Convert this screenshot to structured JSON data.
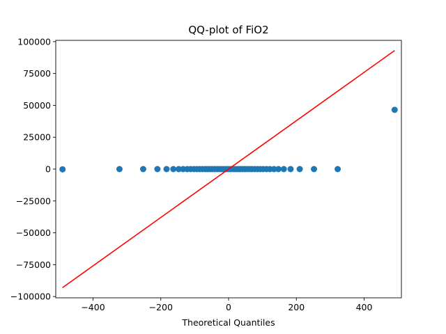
{
  "chart_data": {
    "type": "scatter",
    "title": "QQ-plot of FiO2",
    "xlabel": "Theoretical Quantiles",
    "ylabel": "",
    "xlim": [
      -510,
      510
    ],
    "ylim": [
      -101000,
      101000
    ],
    "grid": false,
    "x_ticks": [
      -400,
      -200,
      0,
      200,
      400
    ],
    "x_tick_labels": [
      "−400",
      "−200",
      "0",
      "200",
      "400"
    ],
    "y_ticks": [
      -100000,
      -75000,
      -50000,
      -25000,
      0,
      25000,
      50000,
      75000,
      100000
    ],
    "y_tick_labels": [
      "−100000",
      "−75000",
      "−50000",
      "−25000",
      "0",
      "25000",
      "50000",
      "75000",
      "100000"
    ],
    "series": [
      {
        "type": "scatter",
        "color": "#1f77b4",
        "points": [
          [
            -490,
            -200
          ],
          [
            -322,
            0
          ],
          [
            -252,
            0
          ],
          [
            -210,
            0
          ],
          [
            -183,
            0
          ],
          [
            -163,
            0
          ],
          [
            -147,
            0
          ],
          [
            -134,
            0
          ],
          [
            -122,
            0
          ],
          [
            -112,
            0
          ],
          [
            -102,
            0
          ],
          [
            -93,
            0
          ],
          [
            -85,
            0
          ],
          [
            -77,
            0
          ],
          [
            -69,
            0
          ],
          [
            -62,
            0
          ],
          [
            -55,
            0
          ],
          [
            -48,
            0
          ],
          [
            -41,
            0
          ],
          [
            -34,
            0
          ],
          [
            -27,
            0
          ],
          [
            -20,
            0
          ],
          [
            -14,
            0
          ],
          [
            -7,
            0
          ],
          [
            0,
            0
          ],
          [
            7,
            0
          ],
          [
            14,
            0
          ],
          [
            20,
            0
          ],
          [
            27,
            0
          ],
          [
            34,
            0
          ],
          [
            41,
            0
          ],
          [
            48,
            0
          ],
          [
            55,
            0
          ],
          [
            62,
            0
          ],
          [
            69,
            0
          ],
          [
            77,
            0
          ],
          [
            85,
            0
          ],
          [
            93,
            0
          ],
          [
            102,
            0
          ],
          [
            112,
            0
          ],
          [
            122,
            0
          ],
          [
            134,
            0
          ],
          [
            147,
            0
          ],
          [
            163,
            0
          ],
          [
            183,
            0
          ],
          [
            210,
            0
          ],
          [
            252,
            0
          ],
          [
            322,
            0
          ],
          [
            490,
            46500
          ]
        ]
      },
      {
        "type": "line",
        "color": "#ff0000",
        "points": [
          [
            -490,
            -93000
          ],
          [
            490,
            93000
          ]
        ]
      }
    ]
  }
}
